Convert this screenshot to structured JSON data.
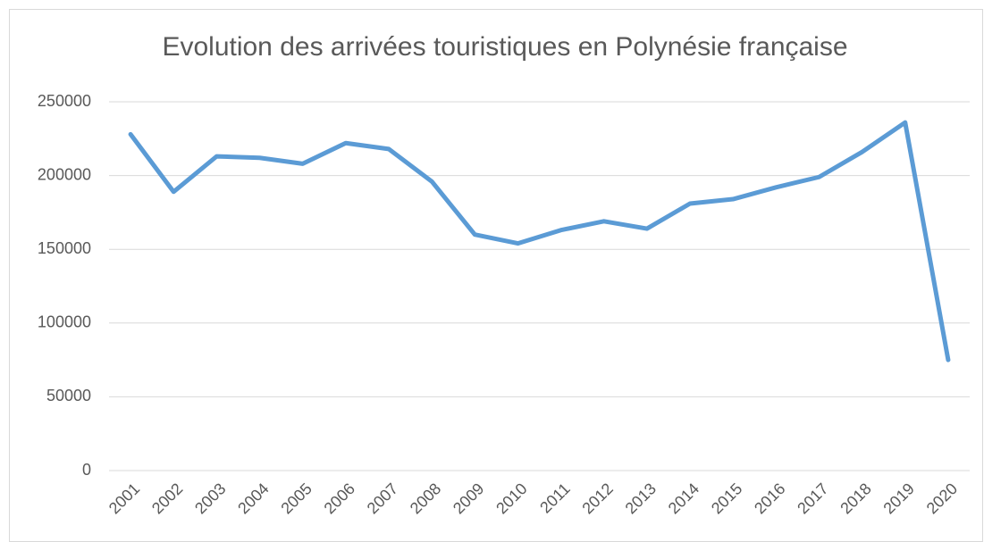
{
  "chart_data": {
    "type": "line",
    "title": "Evolution des arrivées touristiques en Polynésie française",
    "categories": [
      "2001",
      "2002",
      "2003",
      "2004",
      "2005",
      "2006",
      "2007",
      "2008",
      "2009",
      "2010",
      "2011",
      "2012",
      "2013",
      "2014",
      "2015",
      "2016",
      "2017",
      "2018",
      "2019",
      "2020"
    ],
    "series": [
      {
        "name": "Arrivées touristiques",
        "color": "#5b9bd5",
        "values": [
          228000,
          189000,
          213000,
          212000,
          208000,
          222000,
          218000,
          196000,
          160000,
          154000,
          163000,
          169000,
          164000,
          181000,
          184000,
          192000,
          199000,
          216000,
          236000,
          75000
        ]
      }
    ],
    "ylim": [
      0,
      250000
    ],
    "yticks": [
      0,
      50000,
      100000,
      150000,
      200000,
      250000
    ],
    "grid": true
  }
}
